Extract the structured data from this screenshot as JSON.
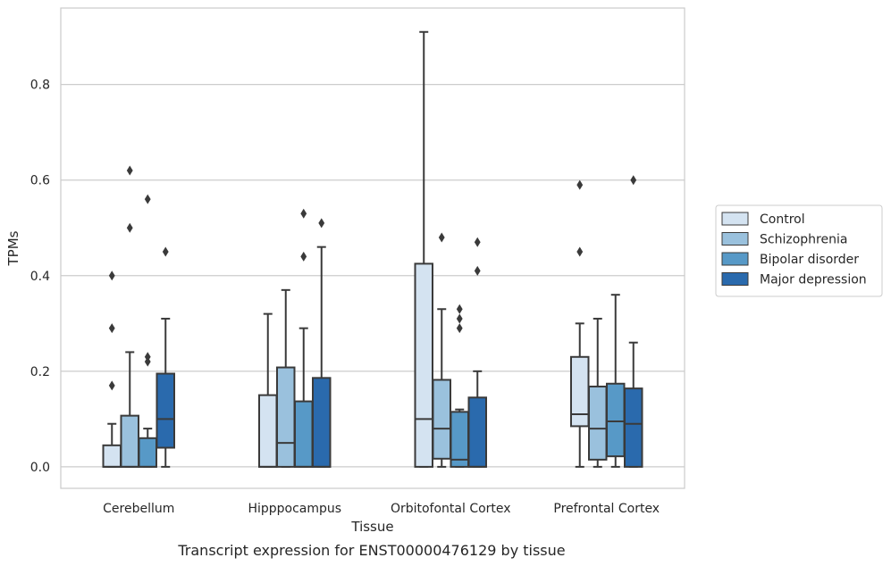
{
  "caption": "Transcript expression for ENST00000476129 by tissue",
  "chart_data": {
    "type": "box",
    "xlabel": "Tissue",
    "ylabel": "TPMs",
    "ylim": [
      -0.045,
      0.96
    ],
    "yticks": [
      0.0,
      0.2,
      0.4,
      0.6,
      0.8
    ],
    "grid": "horizontal",
    "legend_position": "outside-right",
    "categories": [
      "Cerebellum",
      "Hipppocampus",
      "Orbitofontal Cortex",
      "Prefrontal Cortex"
    ],
    "series": [
      {
        "name": "Control",
        "color": "#d4e3f1",
        "boxes": [
          {
            "whislo": 0.0,
            "q1": 0.0,
            "med": 0.0,
            "q3": 0.045,
            "whishi": 0.09,
            "fliers": [
              0.17,
              0.29,
              0.4
            ]
          },
          {
            "whislo": 0.0,
            "q1": 0.0,
            "med": 0.0,
            "q3": 0.15,
            "whishi": 0.32,
            "fliers": []
          },
          {
            "whislo": 0.0,
            "q1": 0.0,
            "med": 0.1,
            "q3": 0.425,
            "whishi": 0.91,
            "fliers": []
          },
          {
            "whislo": 0.0,
            "q1": 0.085,
            "med": 0.11,
            "q3": 0.23,
            "whishi": 0.3,
            "fliers": [
              0.45,
              0.59
            ]
          }
        ]
      },
      {
        "name": "Schizophrenia",
        "color": "#9ac1dd",
        "boxes": [
          {
            "whislo": 0.0,
            "q1": 0.0,
            "med": 0.0,
            "q3": 0.107,
            "whishi": 0.24,
            "fliers": [
              0.5,
              0.62
            ]
          },
          {
            "whislo": 0.0,
            "q1": 0.0,
            "med": 0.05,
            "q3": 0.208,
            "whishi": 0.37,
            "fliers": []
          },
          {
            "whislo": 0.0,
            "q1": 0.017,
            "med": 0.08,
            "q3": 0.182,
            "whishi": 0.33,
            "fliers": [
              0.48
            ]
          },
          {
            "whislo": 0.0,
            "q1": 0.015,
            "med": 0.08,
            "q3": 0.168,
            "whishi": 0.31,
            "fliers": []
          }
        ]
      },
      {
        "name": "Bipolar disorder",
        "color": "#5799c7",
        "boxes": [
          {
            "whislo": 0.0,
            "q1": 0.0,
            "med": 0.0,
            "q3": 0.06,
            "whishi": 0.08,
            "fliers": [
              0.22,
              0.23,
              0.56
            ]
          },
          {
            "whislo": 0.0,
            "q1": 0.0,
            "med": 0.0,
            "q3": 0.137,
            "whishi": 0.29,
            "fliers": [
              0.44,
              0.53
            ]
          },
          {
            "whislo": 0.0,
            "q1": 0.0,
            "med": 0.015,
            "q3": 0.115,
            "whishi": 0.12,
            "fliers": [
              0.29,
              0.31,
              0.33
            ]
          },
          {
            "whislo": 0.0,
            "q1": 0.022,
            "med": 0.095,
            "q3": 0.174,
            "whishi": 0.36,
            "fliers": []
          }
        ]
      },
      {
        "name": "Major depression",
        "color": "#2a6aad",
        "boxes": [
          {
            "whislo": 0.0,
            "q1": 0.04,
            "med": 0.1,
            "q3": 0.195,
            "whishi": 0.31,
            "fliers": [
              0.45
            ]
          },
          {
            "whislo": 0.0,
            "q1": 0.0,
            "med": 0.0,
            "q3": 0.186,
            "whishi": 0.46,
            "fliers": [
              0.51
            ]
          },
          {
            "whislo": 0.0,
            "q1": 0.0,
            "med": 0.0,
            "q3": 0.145,
            "whishi": 0.2,
            "fliers": [
              0.41,
              0.47
            ]
          },
          {
            "whislo": 0.0,
            "q1": 0.0,
            "med": 0.09,
            "q3": 0.164,
            "whishi": 0.26,
            "fliers": [
              0.6
            ]
          }
        ]
      }
    ]
  }
}
